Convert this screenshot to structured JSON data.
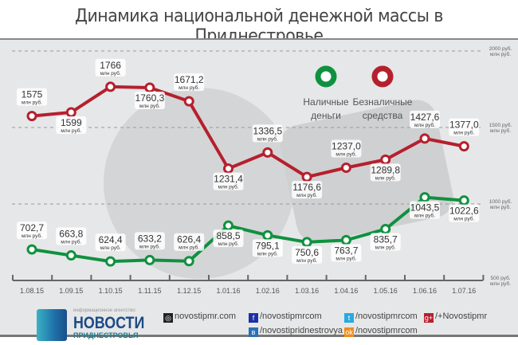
{
  "title": "Динамика национальной денежной массы в Приднестровье",
  "chart_data": {
    "type": "line",
    "title": "Динамика национальной денежной массы в Приднестровье",
    "categories": [
      "1.08.15",
      "1.09.15",
      "1.10.15",
      "1.11.15",
      "1.12.15",
      "1.01.16",
      "1.02.16",
      "1.03.16",
      "1.04.16",
      "1.05.16",
      "1.06.16",
      "1.07.16"
    ],
    "series": [
      {
        "name": "Безналичные средства",
        "color": "#b5202e",
        "values": [
          1575,
          1599,
          1766,
          1760.3,
          1671.2,
          1231.4,
          1336.5,
          1176.6,
          1237.0,
          1289.8,
          1427.6,
          1377.0
        ],
        "labels": [
          "1575",
          "1599",
          "1766",
          "1760,3",
          "1671,2",
          "1231,4",
          "1336,5",
          "1176,6",
          "1237,0",
          "1289,8",
          "1427,6",
          "1377,0"
        ]
      },
      {
        "name": "Наличные деньги",
        "color": "#0f913f",
        "values": [
          702.7,
          663.8,
          624.4,
          633.2,
          626.4,
          858.5,
          795.1,
          750.6,
          763.7,
          835.7,
          1043.5,
          1022.6
        ],
        "labels": [
          "702,7",
          "663,8",
          "624,4",
          "633,2",
          "626,4",
          "858,5",
          "795,1",
          "750,6",
          "763,7",
          "835,7",
          "1043,5",
          "1022,6"
        ]
      }
    ],
    "unit_label": "млн руб.",
    "ylim": [
      500,
      2000
    ],
    "yticks": [
      {
        "value": 2000,
        "label": "2000 руб."
      },
      {
        "value": 1500,
        "label": "1500 руб."
      },
      {
        "value": 1000,
        "label": "1000 руб."
      },
      {
        "value": 500,
        "label": "500 руб."
      }
    ],
    "legend": [
      "Наличные деньги",
      "Безналичные средства"
    ],
    "legend_position": "top-right",
    "grid": true
  },
  "legend": {
    "cash_line1": "Наличные",
    "cash_line2": "деньги",
    "noncash_line1": "Безналичные",
    "noncash_line2": "средства"
  },
  "footer": {
    "agency_small": "информационное агентство",
    "logo_big": "НОВОСТИ",
    "logo_sub": "ПРИДНЕСТРОВЬЯ",
    "site": "novostipmr.com",
    "facebook": "/novostipmrcom",
    "vk": "/novostipridnestrovya",
    "twitter": "/novostipmrcom",
    "ok": "/novostipmrcom",
    "gplus": "/+Novostipmr"
  }
}
